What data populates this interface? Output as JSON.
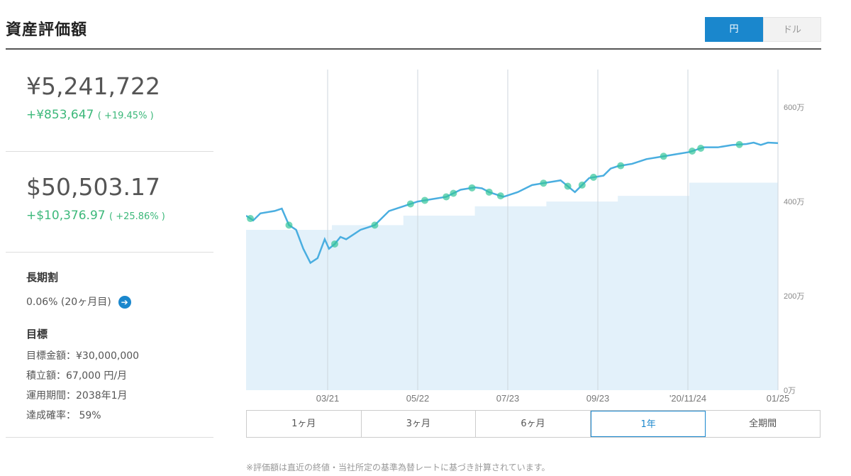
{
  "header": {
    "title": "資産評価額",
    "currency_yen": "円",
    "currency_usd": "ドル"
  },
  "yen_summary": {
    "value": "¥5,241,722",
    "delta": "+¥853,647",
    "pct": "( +19.45% )"
  },
  "usd_summary": {
    "value": "$50,503.17",
    "delta": "+$10,376.97",
    "pct": "( +25.86% )"
  },
  "long_term": {
    "heading": "長期割",
    "value": "0.06% (20ヶ月目)"
  },
  "goal": {
    "heading": "目標",
    "amount": "目標金額：¥30,000,000",
    "monthly": "積立額：67,000 円/月",
    "period": "運用期間：2038年1月",
    "probability": "達成確率： 59%"
  },
  "range_tabs": [
    {
      "label": "1ヶ月",
      "active": false
    },
    {
      "label": "3ヶ月",
      "active": false
    },
    {
      "label": "6ヶ月",
      "active": false
    },
    {
      "label": "1年",
      "active": true
    },
    {
      "label": "全期間",
      "active": false
    }
  ],
  "footnote": "※評価額は直近の終値・当社所定の基準為替レートに基づき計算されています。",
  "colors": {
    "accent": "#1a87cd",
    "positive": "#3cb87a",
    "line": "#4aaee0",
    "area": "#e3f1fa",
    "marker": "#34c49a"
  },
  "chart_data": {
    "type": "line",
    "x_ticks": [
      "03/21",
      "05/22",
      "07/23",
      "09/23",
      "'20/11/24",
      "01/25"
    ],
    "y_ticks": [
      "0万",
      "200万",
      "400万",
      "600万"
    ],
    "y_unit": "万",
    "ylim": [
      0,
      680
    ],
    "xlim": [
      0,
      372
    ],
    "series": [
      {
        "values_x": [
          0,
          5,
          10,
          20,
          25,
          30,
          35,
          40,
          45,
          50,
          55,
          58,
          62,
          66,
          70,
          75,
          80,
          85,
          90,
          95,
          100,
          110,
          120,
          130,
          140,
          150,
          160,
          165,
          170,
          175,
          180,
          190,
          200,
          210,
          220,
          230,
          240,
          250,
          255,
          260,
          270,
          280,
          290,
          300,
          310,
          315,
          320,
          330,
          340,
          350,
          355,
          360,
          365,
          372
        ],
        "values_y": [
          370,
          360,
          375,
          380,
          385,
          350,
          340,
          300,
          270,
          280,
          320,
          300,
          310,
          325,
          320,
          330,
          340,
          345,
          350,
          365,
          380,
          390,
          400,
          405,
          410,
          425,
          430,
          428,
          420,
          415,
          410,
          420,
          435,
          440,
          445,
          420,
          450,
          455,
          470,
          475,
          480,
          490,
          495,
          500,
          505,
          510,
          515,
          515,
          520,
          522,
          525,
          520,
          525,
          524
        ]
      },
      {
        "values_x": [
          0,
          60,
          60,
          110,
          110,
          160,
          160,
          210,
          210,
          260,
          260,
          310,
          310,
          372
        ],
        "values_y": [
          340,
          340,
          350,
          350,
          370,
          370,
          390,
          390,
          400,
          400,
          412,
          412,
          440,
          440
        ]
      }
    ],
    "markers_x": [
      3,
      30,
      62,
      90,
      115,
      125,
      140,
      145,
      158,
      170,
      178,
      208,
      225,
      235,
      243,
      262,
      292,
      312,
      318,
      345
    ],
    "grid": true
  }
}
